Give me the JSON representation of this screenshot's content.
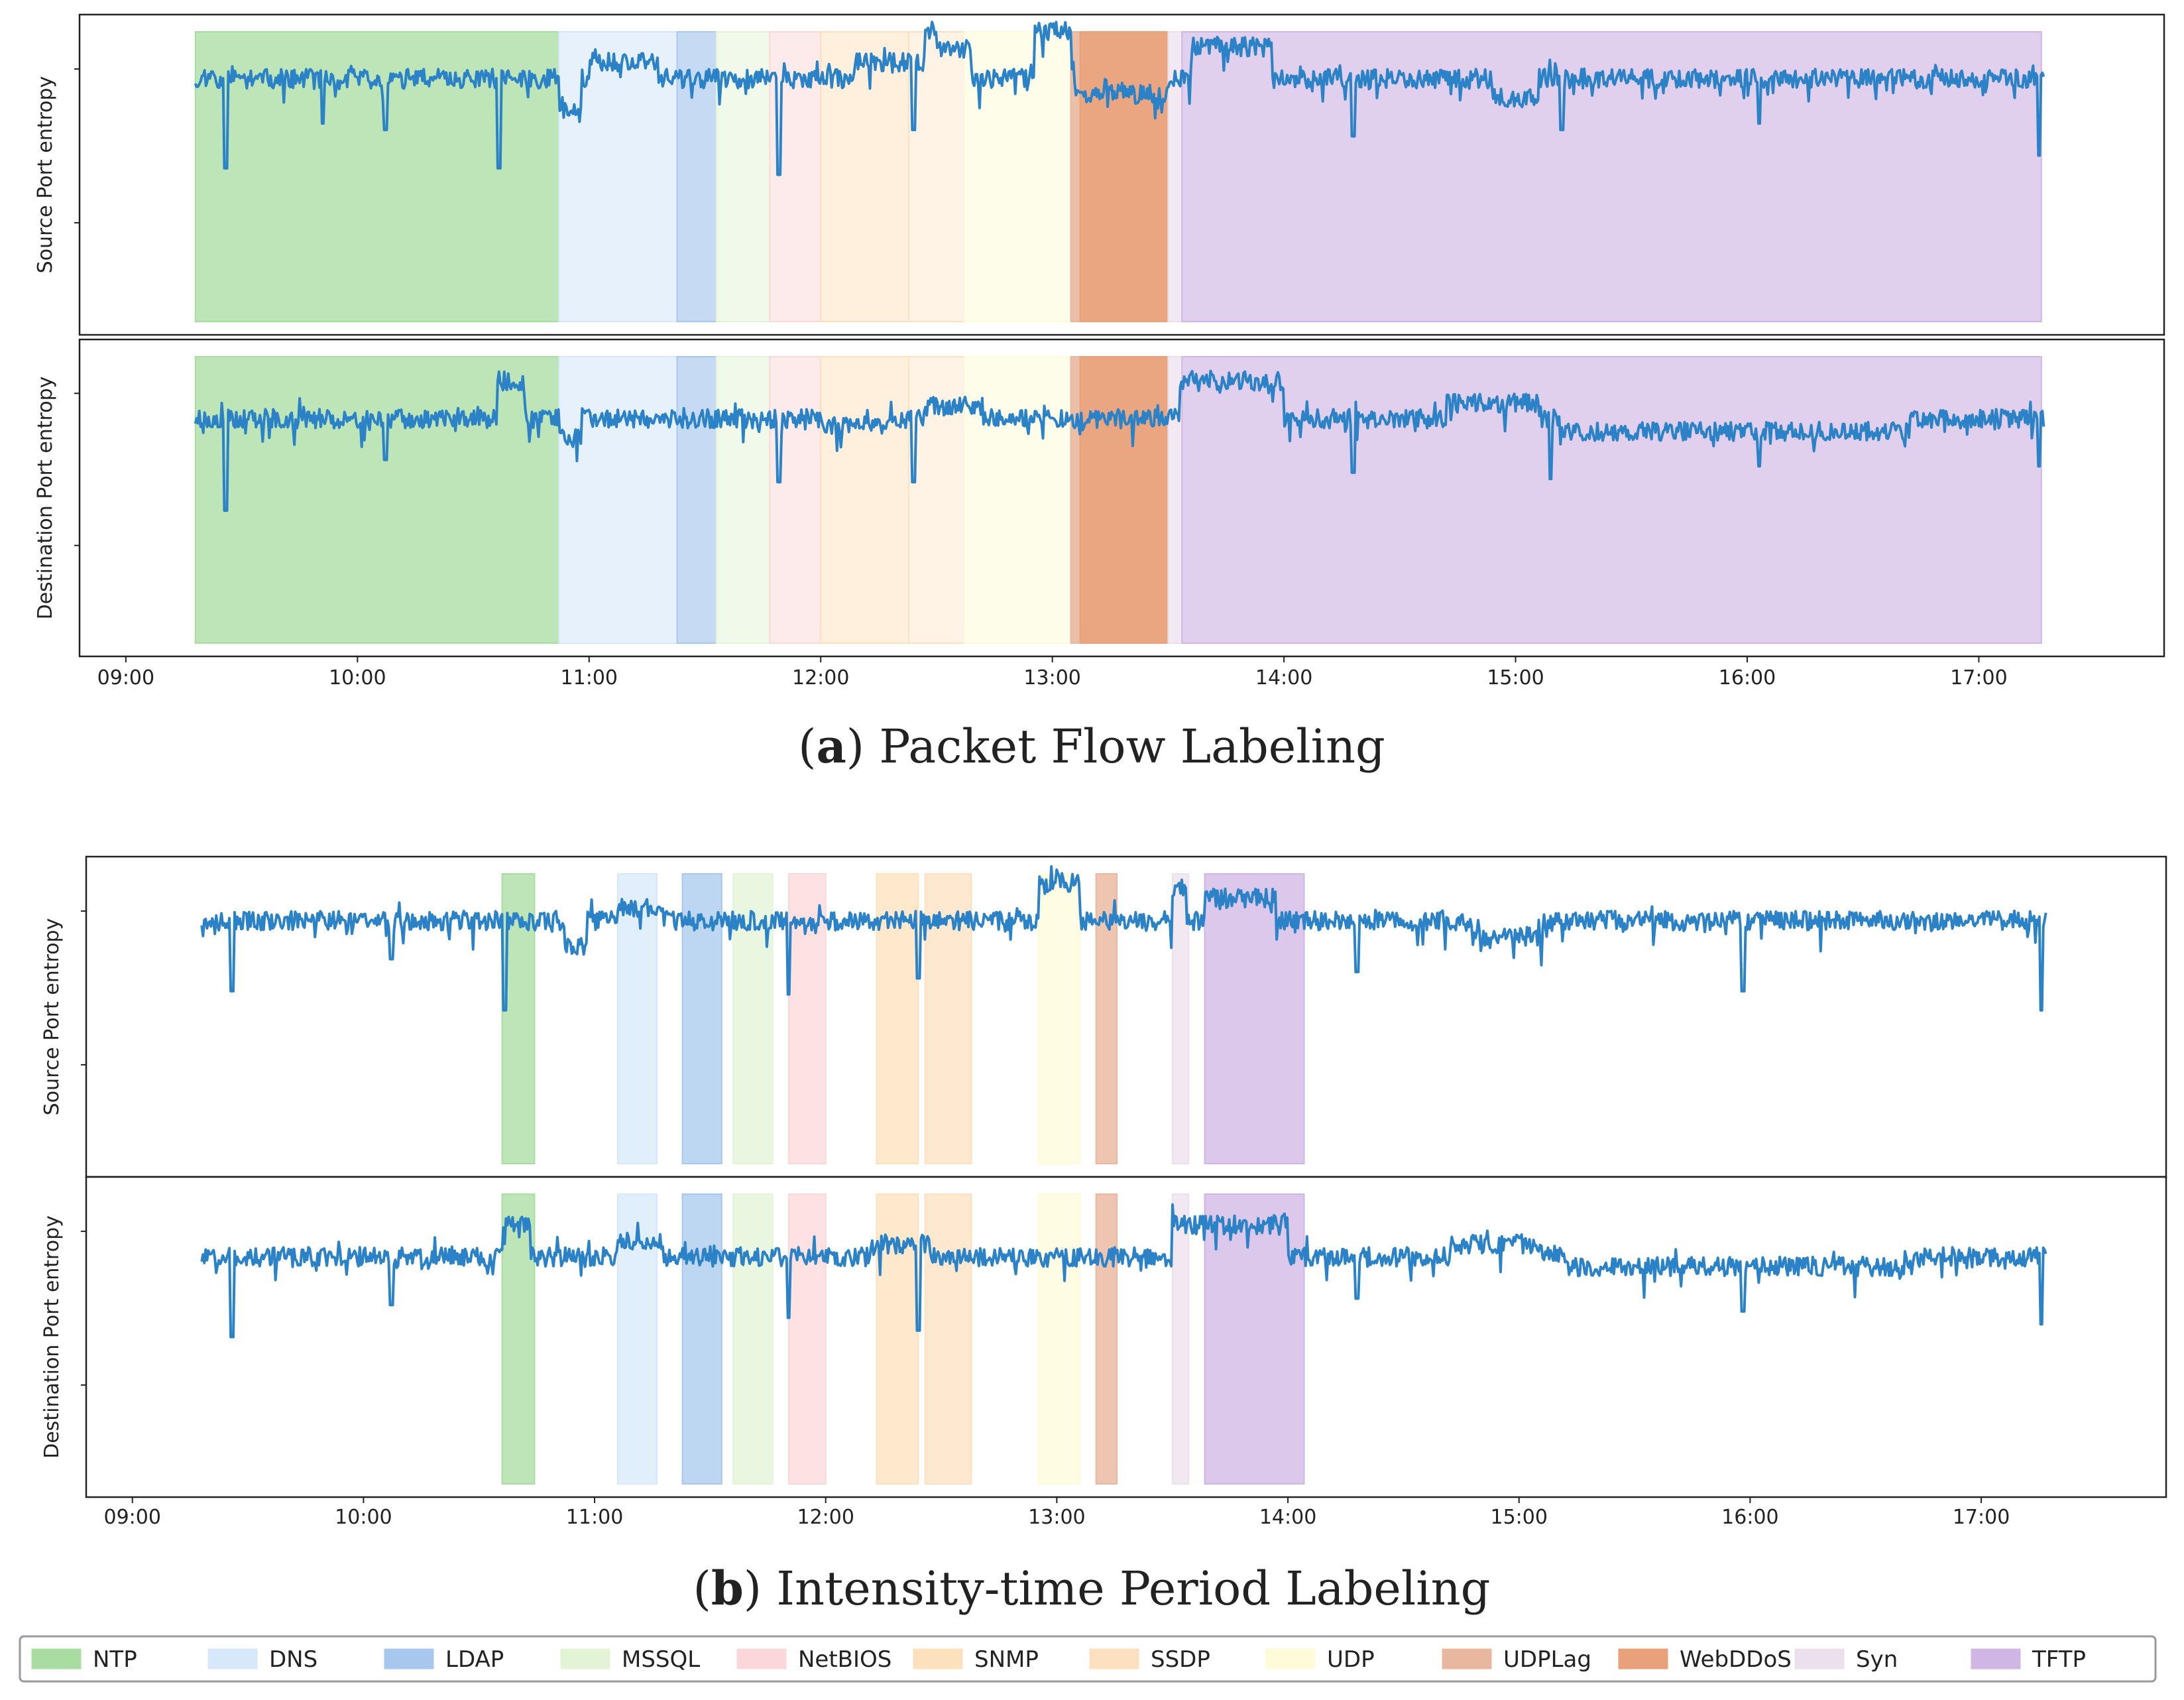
{
  "categories": [
    {
      "name": "NTP",
      "color": "#a8dca0"
    },
    {
      "name": "DNS",
      "color": "#d7e8fa"
    },
    {
      "name": "LDAP",
      "color": "#a7c8ec"
    },
    {
      "name": "MSSQL",
      "color": "#e3f4d6"
    },
    {
      "name": "NetBIOS",
      "color": "#fcd7d9"
    },
    {
      "name": "SNMP",
      "color": "#fde1bc"
    },
    {
      "name": "SSDP",
      "color": "#fde0bf"
    },
    {
      "name": "UDP",
      "color": "#fdfbd8"
    },
    {
      "name": "UDPLag",
      "color": "#e9b79e"
    },
    {
      "name": "WebDDoS",
      "color": "#e8a17a"
    },
    {
      "name": "Syn",
      "color": "#ece0ec"
    },
    {
      "name": "TFTP",
      "color": "#cfb6e4"
    }
  ],
  "line_color": "#2b82c6",
  "chart_data": [
    {
      "id": "a",
      "type": "line",
      "caption_label": "a",
      "caption_text": "Packet Flow Labeling",
      "x_unit": "hours",
      "xlim": [
        8.8,
        17.8
      ],
      "xticks": [
        9,
        10,
        11,
        12,
        13,
        14,
        15,
        16,
        17
      ],
      "xtick_labels": [
        "09:00",
        "10:00",
        "11:00",
        "12:00",
        "13:00",
        "14:00",
        "15:00",
        "16:00",
        "17:00"
      ],
      "x_range": [
        9.3,
        17.28
      ],
      "panels": [
        {
          "ylabel": "Source Port entropy",
          "ylim": [
            0,
            1
          ],
          "spans": [
            {
              "cat": 0,
              "start": 9.3,
              "end": 10.87,
              "alpha": 0.75
            },
            {
              "cat": 1,
              "start": 10.87,
              "end": 11.38,
              "alpha": 0.6
            },
            {
              "cat": 2,
              "start": 11.38,
              "end": 11.55,
              "alpha": 0.65
            },
            {
              "cat": 3,
              "start": 11.55,
              "end": 11.78,
              "alpha": 0.5
            },
            {
              "cat": 4,
              "start": 11.78,
              "end": 12.0,
              "alpha": 0.5
            },
            {
              "cat": 5,
              "start": 12.0,
              "end": 12.38,
              "alpha": 0.5
            },
            {
              "cat": 6,
              "start": 12.38,
              "end": 12.62,
              "alpha": 0.4
            },
            {
              "cat": 7,
              "start": 12.62,
              "end": 13.08,
              "alpha": 0.55
            },
            {
              "cat": 8,
              "start": 13.08,
              "end": 13.12,
              "alpha": 0.9
            },
            {
              "cat": 9,
              "start": 13.12,
              "end": 13.5,
              "alpha": 0.95
            },
            {
              "cat": 10,
              "start": 13.5,
              "end": 13.56,
              "alpha": 0.7
            },
            {
              "cat": 11,
              "start": 13.56,
              "end": 17.27,
              "alpha": 0.65
            }
          ],
          "base": 0.8,
          "noise": 0.03,
          "seed": 11,
          "bumps": [
            {
              "start": 10.87,
              "end": 10.97,
              "delta": -0.1
            },
            {
              "start": 11.0,
              "end": 11.3,
              "delta": 0.05
            },
            {
              "start": 12.15,
              "end": 12.5,
              "delta": 0.05
            },
            {
              "start": 12.45,
              "end": 12.65,
              "delta": 0.1
            },
            {
              "start": 12.92,
              "end": 13.08,
              "delta": 0.15
            },
            {
              "start": 13.1,
              "end": 13.5,
              "delta": -0.05
            },
            {
              "start": 13.6,
              "end": 13.95,
              "delta": 0.1
            },
            {
              "start": 14.9,
              "end": 15.1,
              "delta": -0.06
            }
          ],
          "spikes": [
            {
              "x": 9.43,
              "v": 0.52
            },
            {
              "x": 10.61,
              "v": 0.52
            },
            {
              "x": 9.85,
              "v": 0.66
            },
            {
              "x": 10.12,
              "v": 0.64
            },
            {
              "x": 11.82,
              "v": 0.5
            },
            {
              "x": 12.4,
              "v": 0.64
            },
            {
              "x": 14.3,
              "v": 0.62
            },
            {
              "x": 15.2,
              "v": 0.64
            },
            {
              "x": 16.05,
              "v": 0.66
            },
            {
              "x": 17.26,
              "v": 0.56
            }
          ]
        },
        {
          "ylabel": "Destination Port entropy",
          "ylim": [
            0,
            1
          ],
          "spans": [
            {
              "cat": 0,
              "start": 9.3,
              "end": 10.87,
              "alpha": 0.75
            },
            {
              "cat": 1,
              "start": 10.87,
              "end": 11.38,
              "alpha": 0.6
            },
            {
              "cat": 2,
              "start": 11.38,
              "end": 11.55,
              "alpha": 0.65
            },
            {
              "cat": 3,
              "start": 11.55,
              "end": 11.78,
              "alpha": 0.5
            },
            {
              "cat": 4,
              "start": 11.78,
              "end": 12.0,
              "alpha": 0.5
            },
            {
              "cat": 5,
              "start": 12.0,
              "end": 12.38,
              "alpha": 0.5
            },
            {
              "cat": 6,
              "start": 12.38,
              "end": 12.62,
              "alpha": 0.4
            },
            {
              "cat": 7,
              "start": 12.62,
              "end": 13.08,
              "alpha": 0.55
            },
            {
              "cat": 8,
              "start": 13.08,
              "end": 13.12,
              "alpha": 0.9
            },
            {
              "cat": 9,
              "start": 13.12,
              "end": 13.5,
              "alpha": 0.95
            },
            {
              "cat": 10,
              "start": 13.5,
              "end": 13.56,
              "alpha": 0.7
            },
            {
              "cat": 11,
              "start": 13.56,
              "end": 17.27,
              "alpha": 0.65
            }
          ],
          "base": 0.75,
          "noise": 0.03,
          "seed": 23,
          "bumps": [
            {
              "start": 10.6,
              "end": 10.72,
              "delta": 0.12
            },
            {
              "start": 10.87,
              "end": 10.97,
              "delta": -0.06
            },
            {
              "start": 12.0,
              "end": 12.3,
              "delta": -0.02
            },
            {
              "start": 12.45,
              "end": 12.7,
              "delta": 0.04
            },
            {
              "start": 13.55,
              "end": 14.0,
              "delta": 0.12
            },
            {
              "start": 14.7,
              "end": 15.1,
              "delta": 0.05
            },
            {
              "start": 15.2,
              "end": 16.7,
              "delta": -0.04
            }
          ],
          "spikes": [
            {
              "x": 9.43,
              "v": 0.46
            },
            {
              "x": 10.12,
              "v": 0.62
            },
            {
              "x": 11.82,
              "v": 0.55
            },
            {
              "x": 12.4,
              "v": 0.55
            },
            {
              "x": 14.3,
              "v": 0.58
            },
            {
              "x": 15.15,
              "v": 0.56
            },
            {
              "x": 16.05,
              "v": 0.6
            },
            {
              "x": 17.26,
              "v": 0.6
            }
          ]
        }
      ]
    },
    {
      "id": "b",
      "type": "line",
      "caption_label": "b",
      "caption_text": "Intensity-time Period Labeling",
      "x_unit": "hours",
      "xlim": [
        8.8,
        17.8
      ],
      "xticks": [
        9,
        10,
        11,
        12,
        13,
        14,
        15,
        16,
        17
      ],
      "xtick_labels": [
        "09:00",
        "10:00",
        "11:00",
        "12:00",
        "13:00",
        "14:00",
        "15:00",
        "16:00",
        "17:00"
      ],
      "x_range": [
        9.3,
        17.28
      ],
      "panels": [
        {
          "ylabel": "Source Port entropy",
          "ylim": [
            0,
            1
          ],
          "spans": [
            {
              "cat": 0,
              "start": 10.6,
              "end": 10.74,
              "alpha": 0.75
            },
            {
              "cat": 1,
              "start": 11.1,
              "end": 11.27,
              "alpha": 0.75
            },
            {
              "cat": 2,
              "start": 11.38,
              "end": 11.55,
              "alpha": 0.75
            },
            {
              "cat": 3,
              "start": 11.6,
              "end": 11.77,
              "alpha": 0.75
            },
            {
              "cat": 4,
              "start": 11.84,
              "end": 12.0,
              "alpha": 0.75
            },
            {
              "cat": 5,
              "start": 12.22,
              "end": 12.4,
              "alpha": 0.75
            },
            {
              "cat": 6,
              "start": 12.43,
              "end": 12.63,
              "alpha": 0.75
            },
            {
              "cat": 7,
              "start": 12.92,
              "end": 13.1,
              "alpha": 0.75
            },
            {
              "cat": 8,
              "start": 13.17,
              "end": 13.26,
              "alpha": 0.8
            },
            {
              "cat": 10,
              "start": 13.5,
              "end": 13.57,
              "alpha": 0.75
            },
            {
              "cat": 11,
              "start": 13.64,
              "end": 14.07,
              "alpha": 0.75
            }
          ],
          "base": 0.8,
          "noise": 0.03,
          "seed": 37,
          "bumps": [
            {
              "start": 10.87,
              "end": 10.97,
              "delta": -0.08
            },
            {
              "start": 11.1,
              "end": 11.3,
              "delta": 0.04
            },
            {
              "start": 12.92,
              "end": 13.1,
              "delta": 0.12
            },
            {
              "start": 13.5,
              "end": 13.56,
              "delta": 0.1
            },
            {
              "start": 13.64,
              "end": 13.95,
              "delta": 0.07
            },
            {
              "start": 14.8,
              "end": 15.1,
              "delta": -0.05
            }
          ],
          "spikes": [
            {
              "x": 9.43,
              "v": 0.58
            },
            {
              "x": 10.61,
              "v": 0.52
            },
            {
              "x": 10.12,
              "v": 0.68
            },
            {
              "x": 11.84,
              "v": 0.57
            },
            {
              "x": 12.4,
              "v": 0.62
            },
            {
              "x": 14.3,
              "v": 0.64
            },
            {
              "x": 15.97,
              "v": 0.58
            },
            {
              "x": 17.26,
              "v": 0.52
            }
          ]
        },
        {
          "ylabel": "Destination Port entropy",
          "ylim": [
            0,
            1
          ],
          "spans": [
            {
              "cat": 0,
              "start": 10.6,
              "end": 10.74,
              "alpha": 0.75
            },
            {
              "cat": 1,
              "start": 11.1,
              "end": 11.27,
              "alpha": 0.75
            },
            {
              "cat": 2,
              "start": 11.38,
              "end": 11.55,
              "alpha": 0.75
            },
            {
              "cat": 3,
              "start": 11.6,
              "end": 11.77,
              "alpha": 0.75
            },
            {
              "cat": 4,
              "start": 11.84,
              "end": 12.0,
              "alpha": 0.75
            },
            {
              "cat": 5,
              "start": 12.22,
              "end": 12.4,
              "alpha": 0.75
            },
            {
              "cat": 6,
              "start": 12.43,
              "end": 12.63,
              "alpha": 0.75
            },
            {
              "cat": 7,
              "start": 12.92,
              "end": 13.1,
              "alpha": 0.75
            },
            {
              "cat": 8,
              "start": 13.17,
              "end": 13.26,
              "alpha": 0.8
            },
            {
              "cat": 10,
              "start": 13.5,
              "end": 13.57,
              "alpha": 0.75
            },
            {
              "cat": 11,
              "start": 13.64,
              "end": 14.07,
              "alpha": 0.75
            }
          ],
          "base": 0.75,
          "noise": 0.03,
          "seed": 53,
          "bumps": [
            {
              "start": 10.6,
              "end": 10.72,
              "delta": 0.1
            },
            {
              "start": 11.1,
              "end": 11.3,
              "delta": 0.05
            },
            {
              "start": 12.2,
              "end": 12.45,
              "delta": 0.04
            },
            {
              "start": 13.5,
              "end": 14.0,
              "delta": 0.1
            },
            {
              "start": 14.7,
              "end": 15.1,
              "delta": 0.04
            },
            {
              "start": 15.2,
              "end": 16.7,
              "delta": -0.03
            }
          ],
          "spikes": [
            {
              "x": 9.43,
              "v": 0.5
            },
            {
              "x": 10.12,
              "v": 0.6
            },
            {
              "x": 11.84,
              "v": 0.56
            },
            {
              "x": 12.4,
              "v": 0.52
            },
            {
              "x": 14.3,
              "v": 0.62
            },
            {
              "x": 15.97,
              "v": 0.58
            },
            {
              "x": 17.26,
              "v": 0.54
            }
          ]
        }
      ]
    }
  ]
}
